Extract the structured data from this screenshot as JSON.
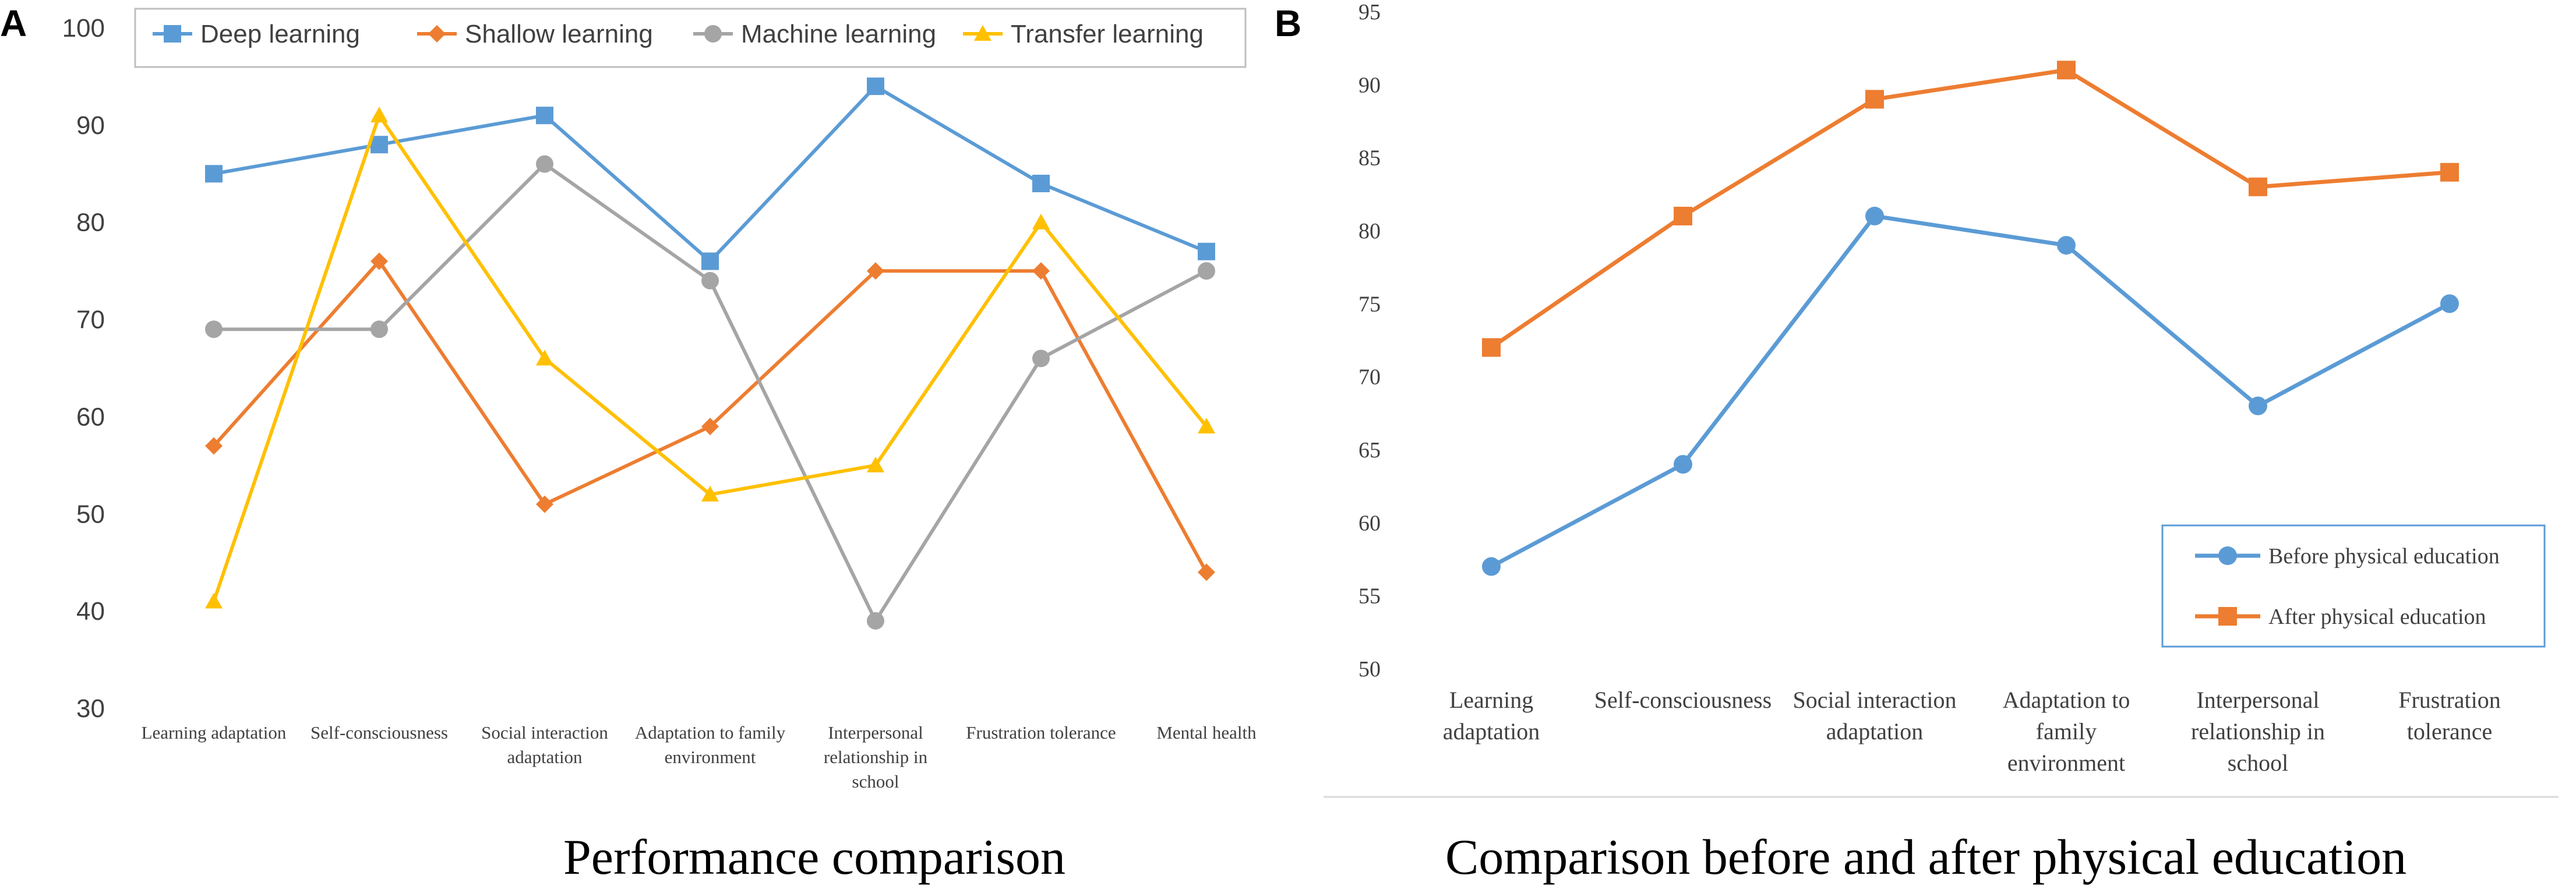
{
  "chart_data": [
    {
      "type": "line",
      "panel": "A",
      "title": "Performance comparison",
      "ylim": [
        30,
        100
      ],
      "yticks": [
        30,
        40,
        50,
        60,
        70,
        80,
        90,
        100
      ],
      "categories": [
        [
          "Learning adaptation"
        ],
        [
          "Self-consciousness"
        ],
        [
          "Social interaction",
          "adaptation"
        ],
        [
          "Adaptation to family",
          "environment"
        ],
        [
          "Interpersonal",
          "relationship in",
          "school"
        ],
        [
          "Frustration tolerance"
        ],
        [
          "Mental health"
        ]
      ],
      "series": [
        {
          "name": "Deep learning",
          "values": [
            85,
            88,
            91,
            76,
            94,
            84,
            77
          ],
          "color": "#5B9BD5",
          "marker": "square"
        },
        {
          "name": "Shallow learning",
          "values": [
            57,
            76,
            51,
            59,
            75,
            75,
            44
          ],
          "color": "#ED7D31",
          "marker": "diamond"
        },
        {
          "name": "Machine learning",
          "values": [
            69,
            69,
            86,
            74,
            39,
            66,
            75
          ],
          "color": "#A5A5A5",
          "marker": "circle"
        },
        {
          "name": "Transfer learning",
          "values": [
            41,
            91,
            66,
            52,
            55,
            80,
            59
          ],
          "color": "#FFC000",
          "marker": "triangle"
        }
      ],
      "legend": "top",
      "grid": false
    },
    {
      "type": "line",
      "panel": "B",
      "title": "Comparison before and after physical education",
      "ylim": [
        50,
        95
      ],
      "yticks": [
        50,
        55,
        60,
        65,
        70,
        75,
        80,
        85,
        90,
        95
      ],
      "categories": [
        [
          "Learning",
          "adaptation"
        ],
        [
          "Self-consciousness"
        ],
        [
          "Social interaction",
          "adaptation"
        ],
        [
          "Adaptation to",
          "family",
          "environment"
        ],
        [
          "Interpersonal",
          "relationship in",
          "school"
        ],
        [
          "Frustration",
          "tolerance"
        ]
      ],
      "series": [
        {
          "name": "Before physical education",
          "values": [
            57,
            64,
            81,
            79,
            68,
            75
          ],
          "color": "#5B9BD5",
          "marker": "circle"
        },
        {
          "name": "After physical education",
          "values": [
            72,
            81,
            89,
            91,
            83,
            84
          ],
          "color": "#ED7D31",
          "marker": "square"
        }
      ],
      "legend": "bottom-right",
      "grid": false
    }
  ]
}
